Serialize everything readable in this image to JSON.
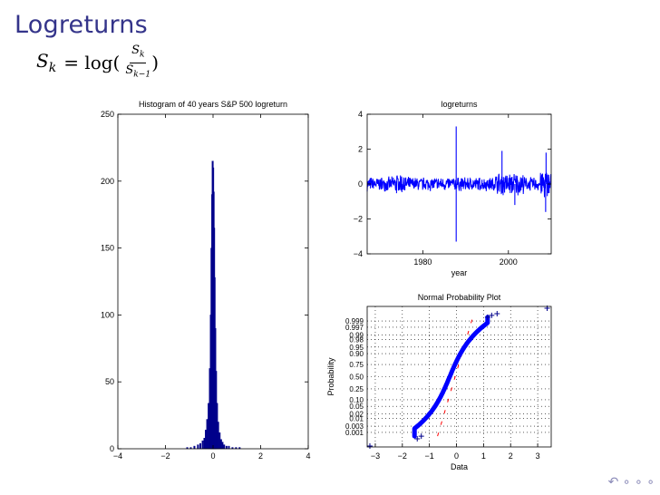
{
  "slide": {
    "title": "Logreturns",
    "formula": {
      "lhs": "S",
      "lhs_sub": "k",
      "eq": "= log(",
      "num": "S",
      "num_sub": "k",
      "den": "S",
      "den_sub": "k−1",
      "close": ")"
    },
    "nav_icons": "navigation-icons"
  },
  "colors": {
    "title": "#34348a",
    "series": "#0000ff",
    "bars": "#00008b",
    "ref": "#ff0000"
  },
  "chart_data": [
    {
      "type": "bar",
      "title": "Histogram of 40 years S&P 500 logreturn",
      "xlim": [
        -4,
        4
      ],
      "ylim": [
        0,
        250
      ],
      "xticks": [
        "−4",
        "−2",
        "0",
        "2",
        "4"
      ],
      "yticks": [
        "0",
        "50",
        "100",
        "150",
        "200",
        "250"
      ],
      "x": [
        -1.1,
        -0.95,
        -0.8,
        -0.65,
        -0.55,
        -0.45,
        -0.38,
        -0.32,
        -0.26,
        -0.2,
        -0.15,
        -0.11,
        -0.08,
        -0.05,
        -0.03,
        -0.01,
        0.01,
        0.03,
        0.05,
        0.08,
        0.11,
        0.15,
        0.2,
        0.26,
        0.32,
        0.38,
        0.45,
        0.55,
        0.65,
        0.8,
        0.95,
        1.1
      ],
      "values": [
        1,
        1,
        2,
        3,
        4,
        6,
        8,
        14,
        22,
        34,
        60,
        100,
        150,
        190,
        215,
        210,
        192,
        165,
        128,
        90,
        58,
        34,
        20,
        12,
        7,
        5,
        3,
        2,
        2,
        1,
        1,
        1
      ]
    },
    {
      "type": "line",
      "title": "logreturns",
      "xlabel": "year",
      "xticks": [
        "1980",
        "2000"
      ],
      "yticks": [
        "−4",
        "−2",
        "0",
        "2",
        "4"
      ],
      "xlim": [
        1967,
        2010
      ],
      "ylim": [
        -4,
        4
      ],
      "spikes": [
        {
          "x": 1987.8,
          "y": 3.3
        },
        {
          "x": 1987.8,
          "y": -3.3
        },
        {
          "x": 1998.5,
          "y": 1.9
        },
        {
          "x": 2001.5,
          "y": -1.2
        },
        {
          "x": 2008.8,
          "y": 1.8
        },
        {
          "x": 2008.7,
          "y": -1.6
        }
      ]
    },
    {
      "type": "scatter",
      "title": "Normal Probability Plot",
      "xlabel": "Data",
      "ylabel": "Probability",
      "xticks": [
        "−3",
        "−2",
        "−1",
        "0",
        "1",
        "2",
        "3"
      ],
      "yticks": [
        "0.001",
        "0.003",
        "0.01",
        "0.02",
        "0.05",
        "0.10",
        "0.25",
        "0.50",
        "0.75",
        "0.90",
        "0.95",
        "0.98",
        "0.99",
        "0.997",
        "0.999"
      ],
      "xlim": [
        -3.3,
        3.5
      ],
      "outliers": [
        {
          "x": -3.2,
          "y": 0.0001
        },
        {
          "x": 3.35,
          "y": 0.9999
        }
      ]
    }
  ]
}
